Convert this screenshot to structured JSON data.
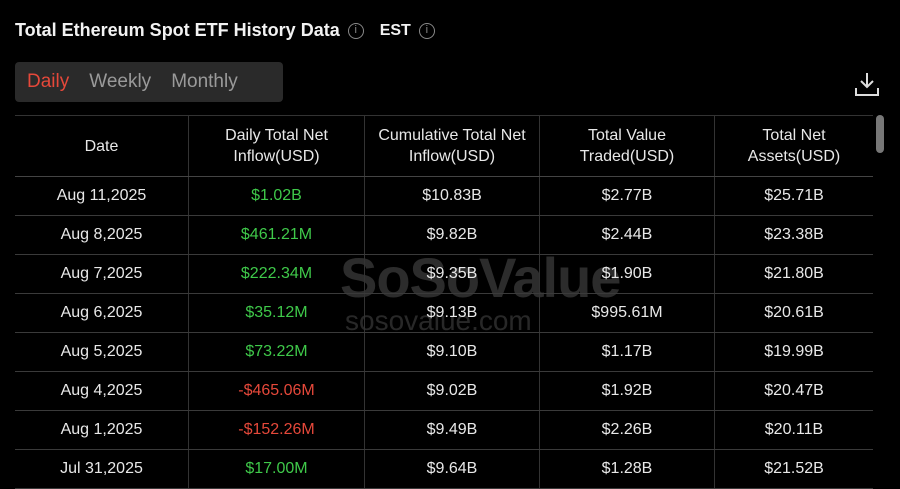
{
  "header": {
    "title": "Total Ethereum Spot ETF History Data",
    "timezone": "EST"
  },
  "tabs": [
    {
      "label": "Daily",
      "active": true
    },
    {
      "label": "Weekly",
      "active": false
    },
    {
      "label": "Monthly",
      "active": false
    }
  ],
  "columns": [
    "Date",
    "Daily Total Net Inflow(USD)",
    "Cumulative Total Net Inflow(USD)",
    "Total Value Traded(USD)",
    "Total Net Assets(USD)"
  ],
  "rows": [
    {
      "date": "Aug 11,2025",
      "inflow": "$1.02B",
      "sign": "pos",
      "cumulative": "$10.83B",
      "traded": "$2.77B",
      "assets": "$25.71B"
    },
    {
      "date": "Aug 8,2025",
      "inflow": "$461.21M",
      "sign": "pos",
      "cumulative": "$9.82B",
      "traded": "$2.44B",
      "assets": "$23.38B"
    },
    {
      "date": "Aug 7,2025",
      "inflow": "$222.34M",
      "sign": "pos",
      "cumulative": "$9.35B",
      "traded": "$1.90B",
      "assets": "$21.80B"
    },
    {
      "date": "Aug 6,2025",
      "inflow": "$35.12M",
      "sign": "pos",
      "cumulative": "$9.13B",
      "traded": "$995.61M",
      "assets": "$20.61B"
    },
    {
      "date": "Aug 5,2025",
      "inflow": "$73.22M",
      "sign": "pos",
      "cumulative": "$9.10B",
      "traded": "$1.17B",
      "assets": "$19.99B"
    },
    {
      "date": "Aug 4,2025",
      "inflow": "-$465.06M",
      "sign": "neg",
      "cumulative": "$9.02B",
      "traded": "$1.92B",
      "assets": "$20.47B"
    },
    {
      "date": "Aug 1,2025",
      "inflow": "-$152.26M",
      "sign": "neg",
      "cumulative": "$9.49B",
      "traded": "$2.26B",
      "assets": "$20.11B"
    },
    {
      "date": "Jul 31,2025",
      "inflow": "$17.00M",
      "sign": "pos",
      "cumulative": "$9.64B",
      "traded": "$1.28B",
      "assets": "$21.52B"
    }
  ],
  "watermark": {
    "brand": "SoSoValue",
    "url": "sosovalue.com"
  },
  "colors": {
    "positive": "#3fc94a",
    "negative": "#e5483a",
    "active_tab": "#e5483a"
  },
  "icons": {
    "info": "info-circle-icon",
    "download": "download-icon"
  }
}
